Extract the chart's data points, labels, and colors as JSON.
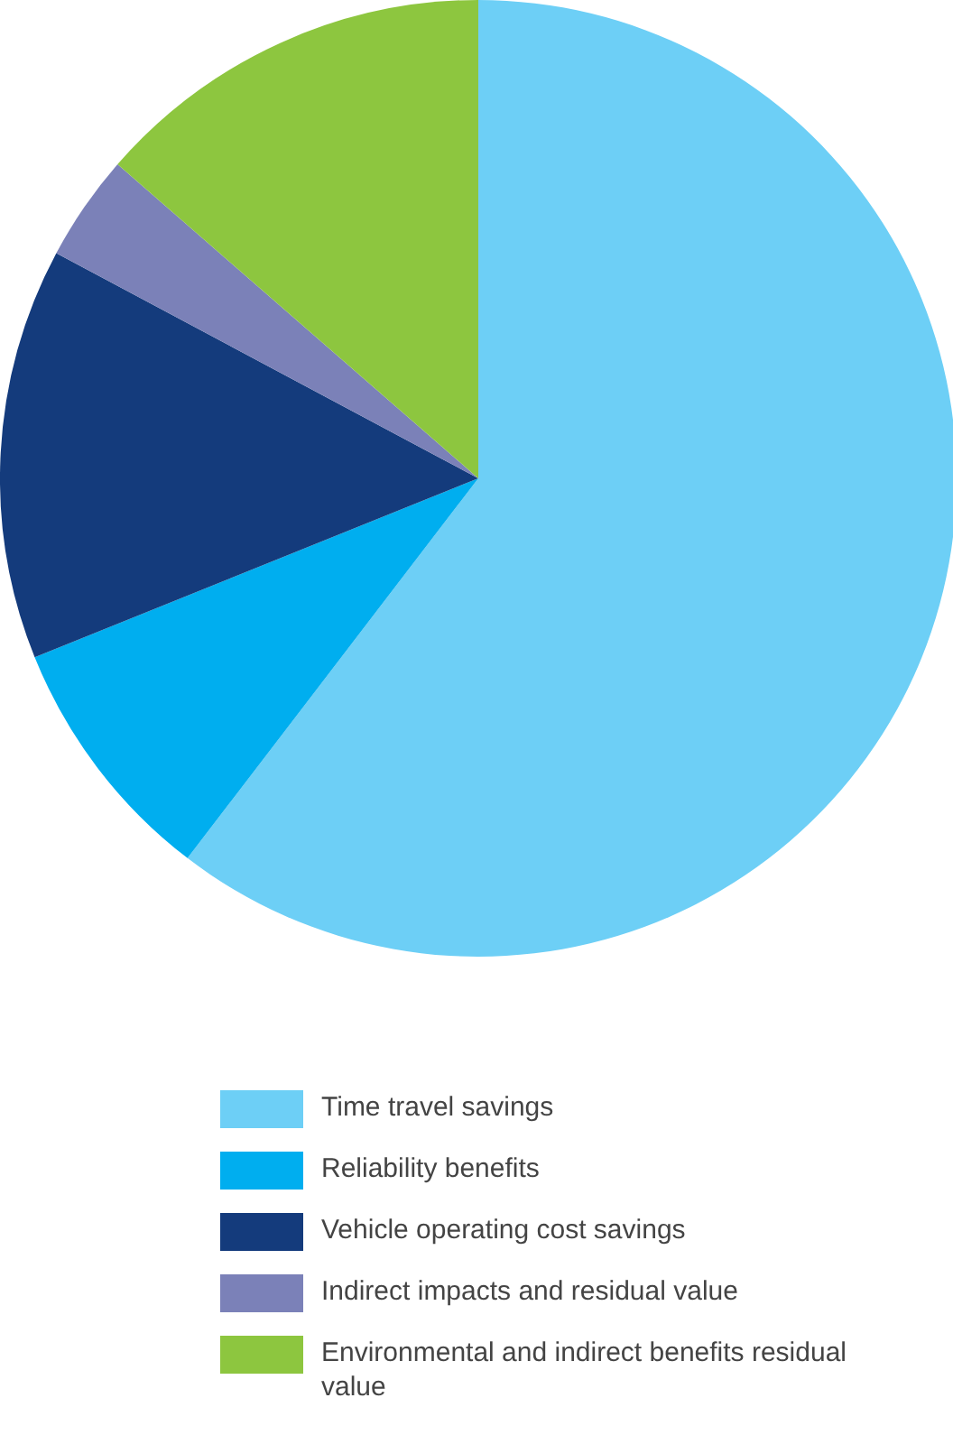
{
  "chart_data": {
    "type": "pie",
    "categories": [
      "Time travel savings",
      "Reliability benefits",
      "Vehicle operating cost savings",
      "Indirect impacts and residual value",
      "Environmental and indirect benefits residual value"
    ],
    "values": [
      60.4,
      8.5,
      13.9,
      3.6,
      13.6
    ],
    "colors": [
      "#6dcff6",
      "#00aeef",
      "#143b7c",
      "#7b81b8",
      "#8dc63f"
    ],
    "legend": "bottom"
  }
}
